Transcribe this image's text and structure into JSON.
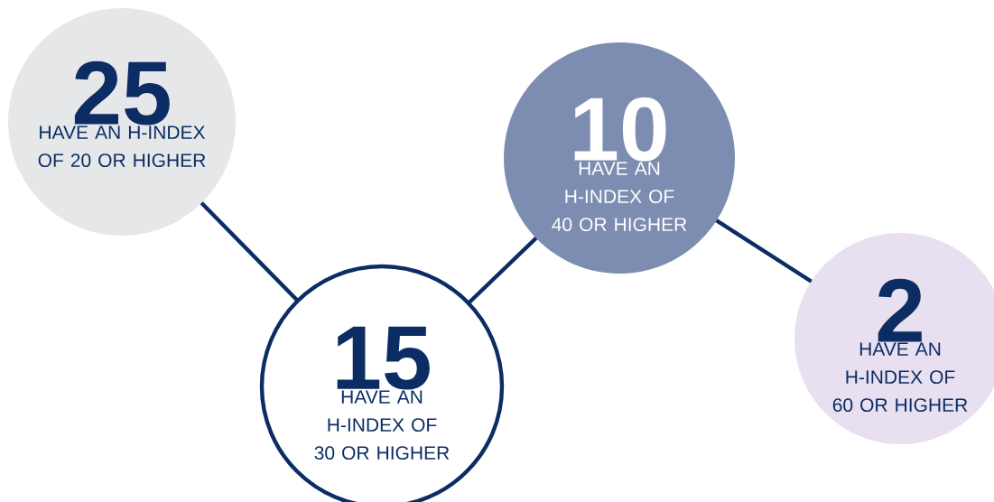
{
  "chart_data": {
    "type": "other",
    "categories": [
      "HAVE AN H-INDEX OF 20 OR HIGHER",
      "HAVE AN H-INDEX OF 30 OR HIGHER",
      "HAVE AN H-INDEX OF 40 OR HIGHER",
      "HAVE AN H-INDEX OF 60 OR HIGHER"
    ],
    "values": [
      25,
      15,
      10,
      2
    ],
    "data_labels": true,
    "colors": [
      "#e6e7e9",
      "#ffffff",
      "#7d8db1",
      "#e8dff0"
    ]
  }
}
